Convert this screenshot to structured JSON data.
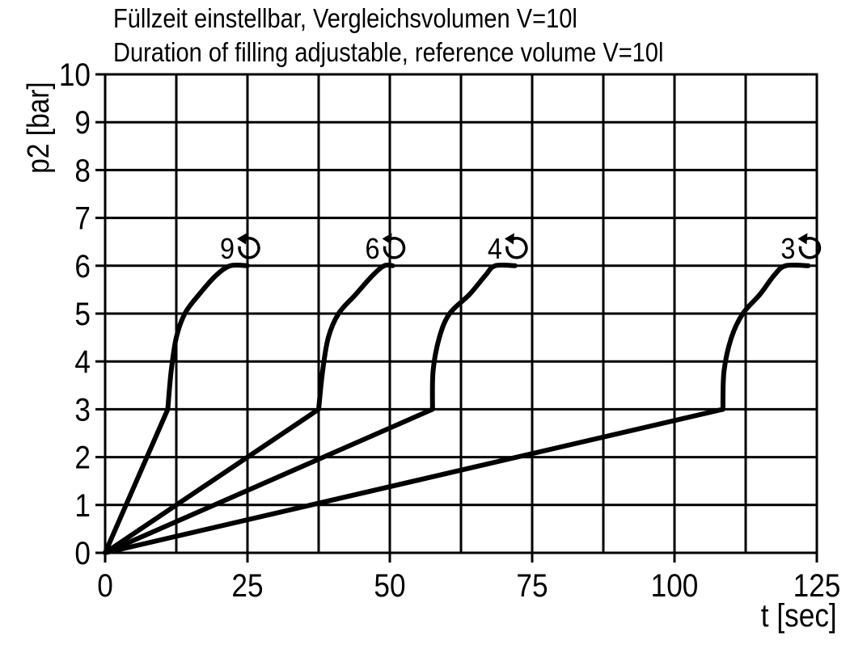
{
  "chart_data": {
    "type": "line",
    "title": "Füllzeit einstellbar,  Vergleichsvolumen V=10l",
    "subtitle": "Duration of filling adjustable,  reference volume V=10l",
    "xlabel": "t [sec]",
    "ylabel": "p2 [bar]",
    "xlim": [
      0,
      125
    ],
    "ylim": [
      0,
      10
    ],
    "x_ticks": [
      0,
      25,
      50,
      75,
      100,
      125
    ],
    "x_tick_labels": [
      "0",
      "25",
      "50",
      "75",
      "100",
      "125"
    ],
    "y_ticks": [
      0,
      1,
      2,
      3,
      4,
      5,
      6,
      7,
      8,
      9,
      10
    ],
    "y_tick_labels": [
      "0",
      "1",
      "2",
      "3",
      "4",
      "5",
      "6",
      "7",
      "8",
      "9",
      "10"
    ],
    "grid": true,
    "series": [
      {
        "label": "9",
        "x": [
          0,
          11,
          11.6,
          12.5,
          14,
          16.5,
          19.5,
          22,
          25
        ],
        "y": [
          0,
          3,
          3.8,
          4.5,
          5,
          5.4,
          5.8,
          6,
          6
        ]
      },
      {
        "label": "6",
        "x": [
          0,
          37.5,
          38.2,
          39.2,
          41,
          44,
          47,
          49,
          50.5
        ],
        "y": [
          0,
          3,
          3.8,
          4.5,
          5,
          5.4,
          5.8,
          6,
          6
        ]
      },
      {
        "label": "4",
        "x": [
          0,
          57.5,
          57.6,
          58.7,
          60.5,
          64,
          66.8,
          68.5,
          72
        ],
        "y": [
          0,
          3,
          3.8,
          4.5,
          5,
          5.4,
          5.8,
          6,
          6
        ]
      },
      {
        "label": "3",
        "x": [
          0,
          108.5,
          108.7,
          110,
          112,
          115,
          117.5,
          119.5,
          123.5
        ],
        "y": [
          0,
          3,
          3.8,
          4.5,
          5,
          5.4,
          5.8,
          6,
          6
        ]
      }
    ]
  }
}
